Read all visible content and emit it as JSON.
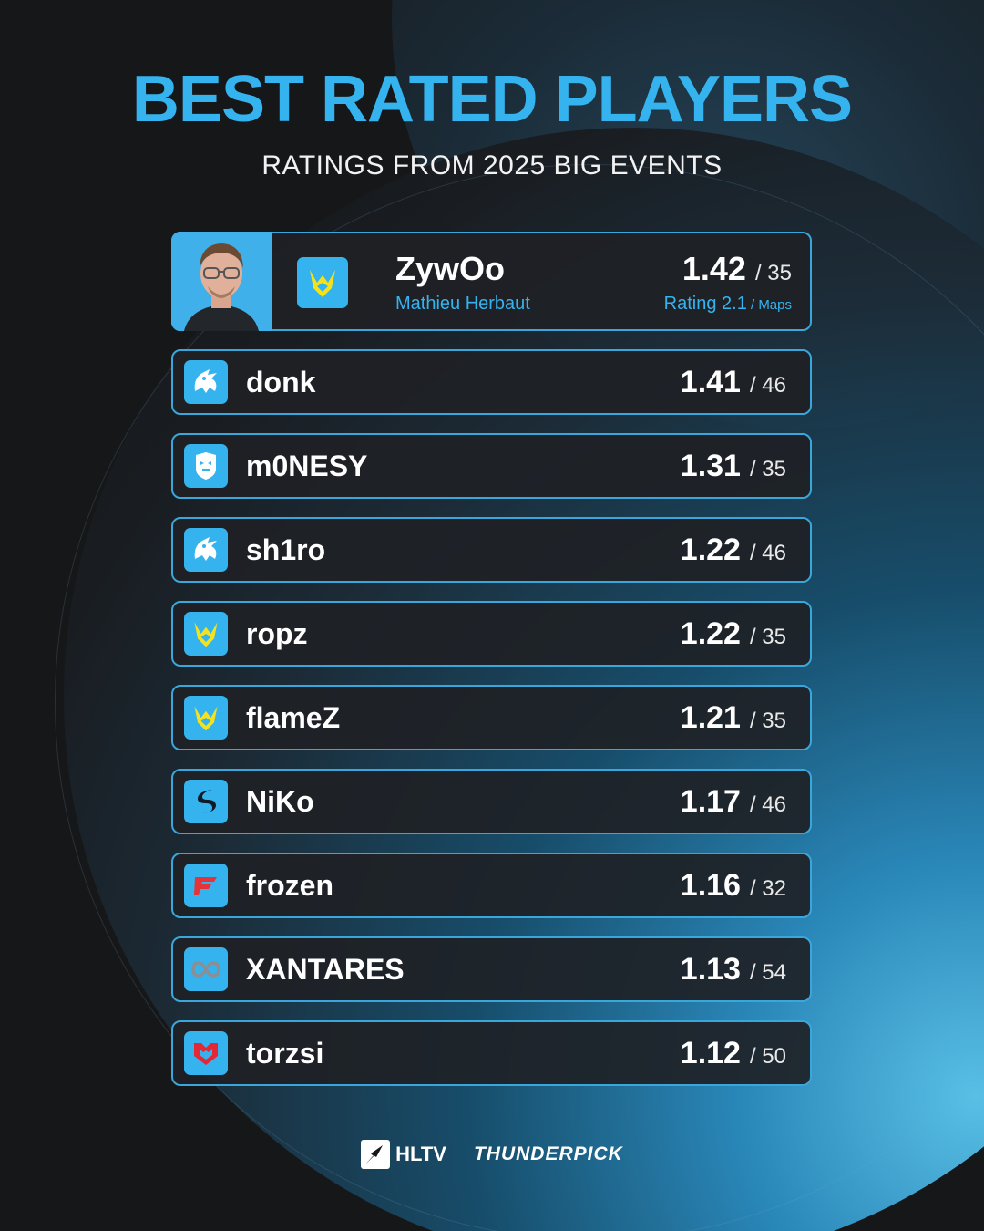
{
  "header": {
    "title": "BEST RATED PLAYERS",
    "subtitle": "RATINGS FROM 2025 BIG EVENTS"
  },
  "top_player": {
    "nick": "ZywOo",
    "real_name": "Mathieu Herbaut",
    "rating": "1.42",
    "maps": "/ 35",
    "caption_main": "Rating 2.1",
    "caption_sub": " / Maps",
    "team_icon": "vitality-icon"
  },
  "players": [
    {
      "nick": "donk",
      "rating": "1.41",
      "maps": "/ 46",
      "team_icon": "spirit-icon"
    },
    {
      "nick": "m0NESY",
      "rating": "1.31",
      "maps": "/ 35",
      "team_icon": "g2-icon"
    },
    {
      "nick": "sh1ro",
      "rating": "1.22",
      "maps": "/ 46",
      "team_icon": "spirit-icon"
    },
    {
      "nick": "ropz",
      "rating": "1.22",
      "maps": "/ 35",
      "team_icon": "vitality-icon"
    },
    {
      "nick": "flameZ",
      "rating": "1.21",
      "maps": "/ 35",
      "team_icon": "vitality-icon"
    },
    {
      "nick": "NiKo",
      "rating": "1.17",
      "maps": "/ 46",
      "team_icon": "falcons-icon"
    },
    {
      "nick": "frozen",
      "rating": "1.16",
      "maps": "/ 32",
      "team_icon": "faze-icon"
    },
    {
      "nick": "XANTARES",
      "rating": "1.13",
      "maps": "/ 54",
      "team_icon": "aurora-icon"
    },
    {
      "nick": "torzsi",
      "rating": "1.12",
      "maps": "/ 50",
      "team_icon": "mouz-icon"
    }
  ],
  "footer": {
    "brand_1": "HLTV",
    "brand_2": "THUNDERPICK"
  },
  "colors": {
    "accent": "#35b3ee",
    "background": "#161719",
    "row_bg": "#1e2125",
    "vitality_yellow": "#f5e21c",
    "faze_red": "#e4343a",
    "mouz_red": "#e42735"
  }
}
